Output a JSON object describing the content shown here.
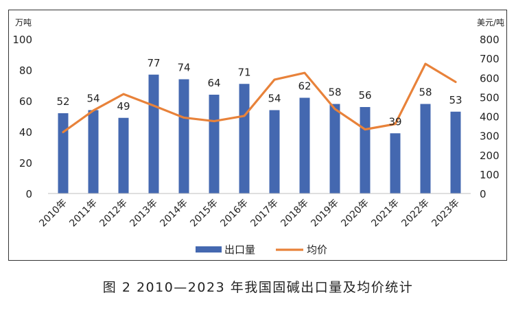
{
  "caption": "图 2  2010—2023 年我国固碱出口量及均价统计",
  "chart_data": {
    "type": "bar+line",
    "categories": [
      "2010年",
      "2011年",
      "2012年",
      "2013年",
      "2014年",
      "2015年",
      "2016年",
      "2017年",
      "2018年",
      "2019年",
      "2020年",
      "2021年",
      "2022年",
      "2023年"
    ],
    "series": [
      {
        "name": "出口量",
        "type": "bar",
        "axis": "left",
        "color": "#4468b0",
        "values": [
          52,
          54,
          49,
          77,
          74,
          64,
          71,
          54,
          62,
          58,
          56,
          39,
          58,
          53
        ]
      },
      {
        "name": "均价",
        "type": "line",
        "axis": "right",
        "color": "#e8823a",
        "values": [
          318,
          430,
          515,
          455,
          393,
          375,
          402,
          590,
          625,
          438,
          332,
          360,
          672,
          578
        ]
      }
    ],
    "left_axis": {
      "unit": "万吨",
      "ylim": [
        0,
        100
      ],
      "ticks": [
        0,
        20,
        40,
        60,
        80,
        100
      ]
    },
    "right_axis": {
      "unit": "美元/吨",
      "ylim": [
        0,
        800
      ],
      "ticks": [
        0,
        100,
        200,
        300,
        400,
        500,
        600,
        700,
        800
      ]
    },
    "data_labels": "bars",
    "grid": false,
    "legend_position": "bottom"
  }
}
